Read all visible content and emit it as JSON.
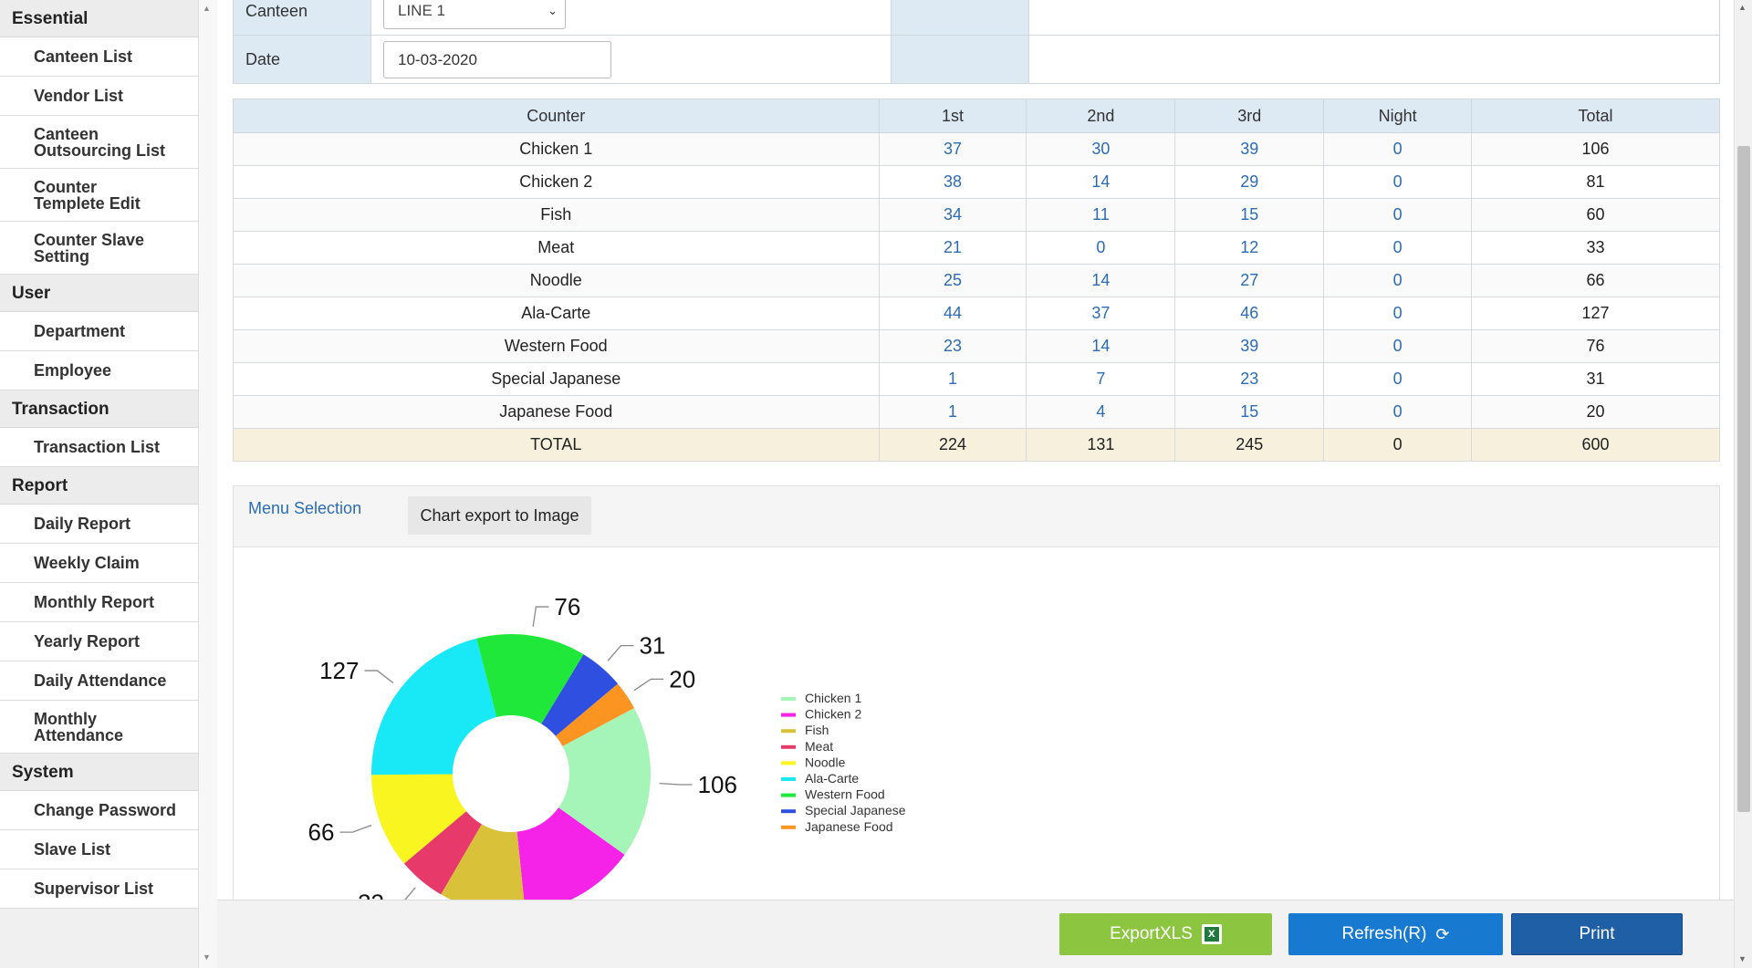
{
  "sidebar": {
    "groups": [
      {
        "label": "Essential",
        "items": [
          {
            "label": "Canteen List",
            "lines": 1
          },
          {
            "label": "Vendor List",
            "lines": 1
          },
          {
            "label": "Canteen Outsourcing List",
            "lines": 2
          },
          {
            "label": "Counter Templete Edit",
            "lines": 2
          },
          {
            "label": "Counter Slave Setting",
            "lines": 2
          }
        ]
      },
      {
        "label": "User",
        "items": [
          {
            "label": "Department",
            "lines": 1
          },
          {
            "label": "Employee",
            "lines": 1
          }
        ]
      },
      {
        "label": "Transaction",
        "items": [
          {
            "label": "Transaction List",
            "lines": 1
          }
        ]
      },
      {
        "label": "Report",
        "items": [
          {
            "label": "Daily Report",
            "lines": 1
          },
          {
            "label": "Weekly Claim",
            "lines": 1
          },
          {
            "label": "Monthly Report",
            "lines": 1
          },
          {
            "label": "Yearly Report",
            "lines": 1
          },
          {
            "label": "Daily Attendance",
            "lines": 1
          },
          {
            "label": "Monthly Attendance",
            "lines": 2
          }
        ]
      },
      {
        "label": "System",
        "items": [
          {
            "label": "Change Password",
            "lines": 1
          },
          {
            "label": "Slave List",
            "lines": 1
          },
          {
            "label": "Supervisor List",
            "lines": 1
          }
        ]
      }
    ]
  },
  "filters": {
    "canteen_label": "Canteen",
    "canteen_value": "LINE 1",
    "date_label": "Date",
    "date_value": "10-03-2020"
  },
  "table": {
    "headers": [
      "Counter",
      "1st",
      "2nd",
      "3rd",
      "Night",
      "Total"
    ],
    "rows": [
      [
        "Chicken 1",
        "37",
        "30",
        "39",
        "0",
        "106"
      ],
      [
        "Chicken 2",
        "38",
        "14",
        "29",
        "0",
        "81"
      ],
      [
        "Fish",
        "34",
        "11",
        "15",
        "0",
        "60"
      ],
      [
        "Meat",
        "21",
        "0",
        "12",
        "0",
        "33"
      ],
      [
        "Noodle",
        "25",
        "14",
        "27",
        "0",
        "66"
      ],
      [
        "Ala-Carte",
        "44",
        "37",
        "46",
        "0",
        "127"
      ],
      [
        "Western Food",
        "23",
        "14",
        "39",
        "0",
        "76"
      ],
      [
        "Special Japanese",
        "1",
        "7",
        "23",
        "0",
        "31"
      ],
      [
        "Japanese Food",
        "1",
        "4",
        "15",
        "0",
        "20"
      ]
    ],
    "total_row": [
      "TOTAL",
      "224",
      "131",
      "245",
      "0",
      "600"
    ]
  },
  "chart_panel": {
    "menu_selection_label": "Menu Selection",
    "export_button_label": "Chart export to Image"
  },
  "chart_data": {
    "type": "pie",
    "categories": [
      "Chicken 1",
      "Chicken 2",
      "Fish",
      "Meat",
      "Noodle",
      "Ala-Carte",
      "Western Food",
      "Special Japanese",
      "Japanese Food"
    ],
    "values": [
      106,
      81,
      60,
      33,
      66,
      127,
      76,
      31,
      20
    ],
    "colors": [
      "#a6f5b8",
      "#f522e8",
      "#d9c23a",
      "#e8396b",
      "#f8f520",
      "#19e8f7",
      "#1fe83a",
      "#2f4fe0",
      "#fb9421"
    ],
    "legend_position": "right",
    "donut": true
  },
  "footer": {
    "export_xls_label": "ExportXLS",
    "refresh_label": "Refresh(R)",
    "print_label": "Print"
  }
}
